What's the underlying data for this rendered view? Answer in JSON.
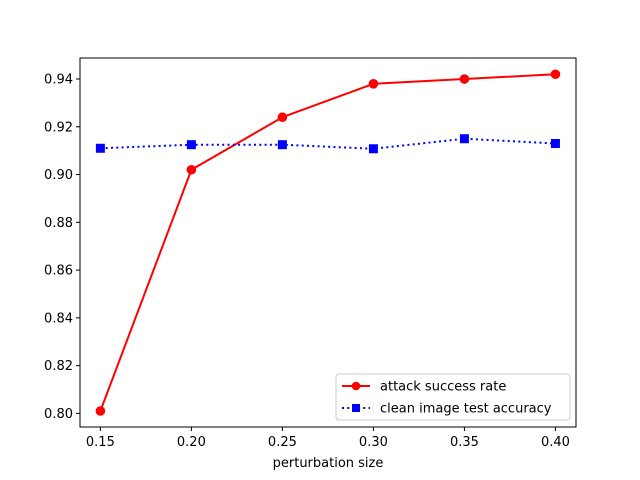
{
  "chart_data": {
    "type": "line",
    "title": "",
    "xlabel": "perturbation size",
    "ylabel": "",
    "x": [
      0.15,
      0.2,
      0.25,
      0.3,
      0.35,
      0.4
    ],
    "xlim": [
      0.1388,
      0.4113
    ],
    "ylim": [
      0.7943,
      0.9488
    ],
    "xticks": [
      "0.15",
      "0.20",
      "0.25",
      "0.30",
      "0.35",
      "0.40"
    ],
    "yticks": [
      "0.80",
      "0.82",
      "0.84",
      "0.86",
      "0.88",
      "0.90",
      "0.92",
      "0.94"
    ],
    "grid": false,
    "legend_position": "lower-right",
    "series": [
      {
        "name": "attack success rate",
        "values": [
          0.801,
          0.902,
          0.924,
          0.938,
          0.94,
          0.942
        ],
        "color": "#ff0000",
        "marker": "circle",
        "line_style": "solid"
      },
      {
        "name": "clean image test accuracy",
        "values": [
          0.911,
          0.9125,
          0.9125,
          0.9108,
          0.915,
          0.913
        ],
        "color": "#0000ff",
        "marker": "square",
        "line_style": "dotted"
      }
    ]
  }
}
